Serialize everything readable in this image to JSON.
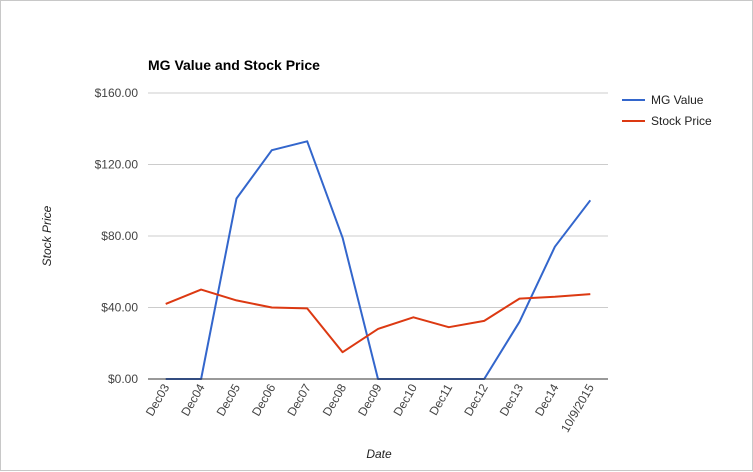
{
  "chart_data": {
    "type": "line",
    "title": "MG Value and Stock Price",
    "xlabel": "Date",
    "ylabel": "Stock Price",
    "categories": [
      "Dec03",
      "Dec04",
      "Dec05",
      "Dec06",
      "Dec07",
      "Dec08",
      "Dec09",
      "Dec10",
      "Dec11",
      "Dec12",
      "Dec13",
      "Dec14",
      "10/9/2015"
    ],
    "series": [
      {
        "name": "MG Value",
        "color": "#3366cc",
        "values": [
          0,
          0,
          101,
          128,
          133,
          79,
          0,
          0,
          0,
          0,
          32,
          74,
          100
        ]
      },
      {
        "name": "Stock Price",
        "color": "#dc3912",
        "values": [
          42,
          50,
          44,
          40,
          39.5,
          15,
          28,
          34.5,
          29,
          32.5,
          45,
          46,
          47.5
        ]
      }
    ],
    "ylim": [
      0,
      160
    ],
    "yticks": [
      {
        "value": 0,
        "label": "$0.00"
      },
      {
        "value": 40,
        "label": "$40.00"
      },
      {
        "value": 80,
        "label": "$80.00"
      },
      {
        "value": 120,
        "label": "$120.00"
      },
      {
        "value": 160,
        "label": "$160.00"
      }
    ],
    "grid": true,
    "legend_position": "right"
  }
}
